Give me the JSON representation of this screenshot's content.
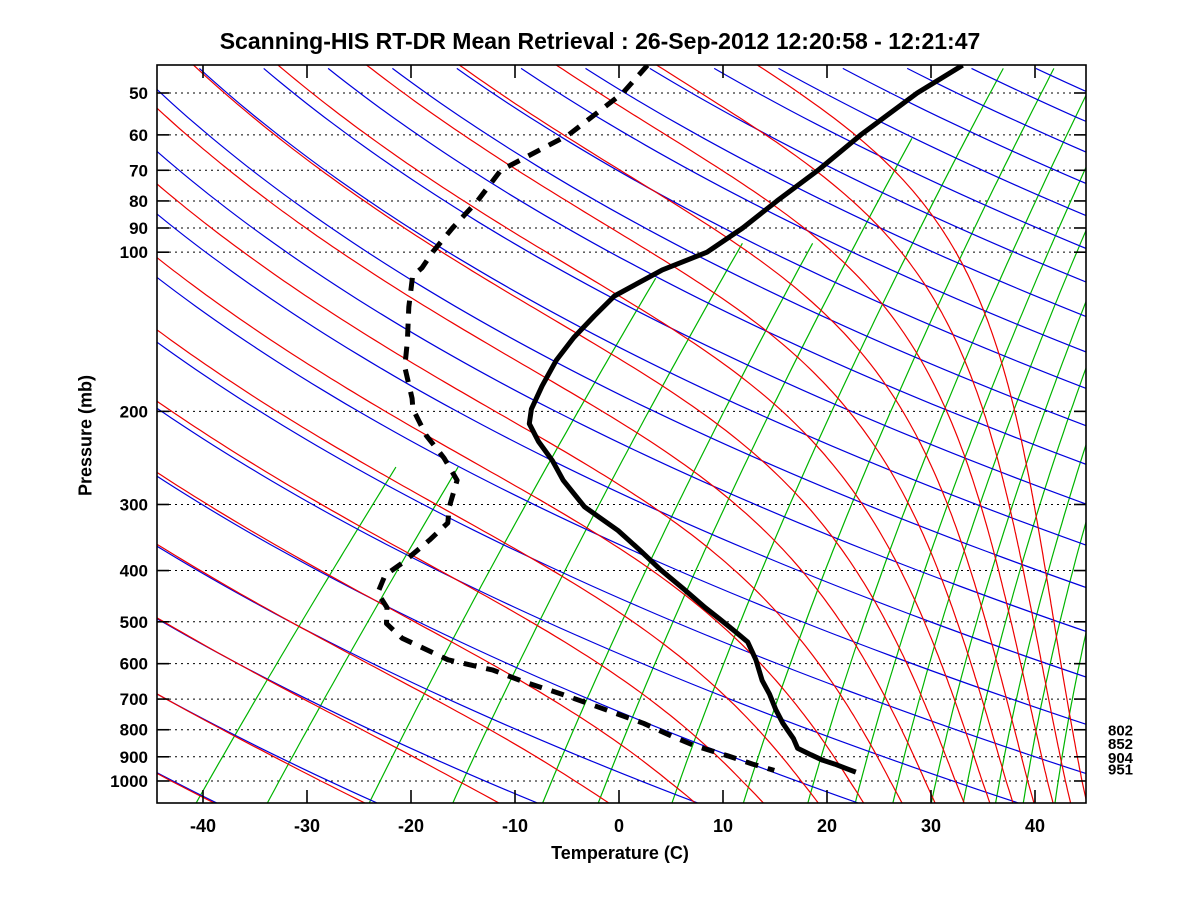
{
  "title": "Scanning-HIS RT-DR Mean Retrieval : 26-Sep-2012 12:20:58 - 12:21:47",
  "axes": {
    "x": {
      "label": "Temperature (C)",
      "tick_values": [
        -40,
        -30,
        -20,
        -10,
        0,
        10,
        20,
        30,
        40
      ]
    },
    "y": {
      "label": "Pressure (mb)",
      "tick_values": [
        50,
        60,
        70,
        80,
        90,
        100,
        200,
        300,
        400,
        500,
        600,
        700,
        800,
        900,
        1000
      ]
    }
  },
  "right_pressure_labels": [
    802,
    852,
    904,
    951
  ],
  "chart_data": {
    "type": "line",
    "chart_kind": "skew-t-log-p",
    "title": "Scanning-HIS RT-DR Mean Retrieval : 26-Sep-2012 12:20:58 - 12:21:47",
    "xlabel": "Temperature (C)",
    "ylabel": "Pressure (mb)",
    "xlim": [
      -44.4,
      44.9
    ],
    "ylim_pressure_mb": [
      1100.7,
      44.3
    ],
    "skew_degrees": 45,
    "grid": "dotted horizontal lines at labeled pressure levels",
    "legend_position": "none",
    "series": [
      {
        "name": "Temperature",
        "style": "solid",
        "color": "#000000",
        "points_p_mb_T_c": [
          [
            44.3,
            -37.9
          ],
          [
            50,
            -39.6
          ],
          [
            60,
            -41.0
          ],
          [
            70,
            -41.7
          ],
          [
            80,
            -42.7
          ],
          [
            90,
            -43.4
          ],
          [
            100,
            -44.5
          ],
          [
            108,
            -47.1
          ],
          [
            121,
            -49.2
          ],
          [
            132,
            -49.2
          ],
          [
            145,
            -49.1
          ],
          [
            160,
            -48.6
          ],
          [
            179,
            -47.5
          ],
          [
            198,
            -46.3
          ],
          [
            211,
            -45.1
          ],
          [
            228,
            -42.5
          ],
          [
            248,
            -39.3
          ],
          [
            270,
            -36.4
          ],
          [
            303,
            -31.8
          ],
          [
            336,
            -26.3
          ],
          [
            366,
            -22.3
          ],
          [
            398,
            -18.5
          ],
          [
            433,
            -14.4
          ],
          [
            470,
            -10.5
          ],
          [
            493,
            -8.1
          ],
          [
            523,
            -5.2
          ],
          [
            546,
            -3.1
          ],
          [
            590,
            -0.6
          ],
          [
            646,
            2.0
          ],
          [
            685,
            4.0
          ],
          [
            733,
            6.1
          ],
          [
            778,
            8.1
          ],
          [
            832,
            10.6
          ],
          [
            867,
            11.9
          ],
          [
            892,
            13.8
          ],
          [
            914,
            15.5
          ],
          [
            929,
            17.0
          ],
          [
            948,
            18.6
          ],
          [
            962,
            19.8
          ]
        ]
      },
      {
        "name": "Dew point",
        "style": "dashed",
        "color": "#000000",
        "points_p_mb_T_c": [
          [
            44.3,
            -68.2
          ],
          [
            50,
            -67.9
          ],
          [
            60,
            -69.1
          ],
          [
            70,
            -72.2
          ],
          [
            80,
            -71.5
          ],
          [
            90,
            -71.3
          ],
          [
            100,
            -70.9
          ],
          [
            107,
            -70.4
          ],
          [
            111,
            -70.5
          ],
          [
            127,
            -67.9
          ],
          [
            147,
            -64.8
          ],
          [
            165,
            -62.5
          ],
          [
            189,
            -58.8
          ],
          [
            198,
            -57.7
          ],
          [
            222,
            -53.9
          ],
          [
            245,
            -50.0
          ],
          [
            270,
            -46.6
          ],
          [
            303,
            -44.8
          ],
          [
            325,
            -43.4
          ],
          [
            350,
            -43.5
          ],
          [
            386,
            -43.9
          ],
          [
            408,
            -44.4
          ],
          [
            441,
            -43.4
          ],
          [
            470,
            -41.1
          ],
          [
            504,
            -39.6
          ],
          [
            537,
            -36.7
          ],
          [
            590,
            -30.2
          ],
          [
            617,
            -24.9
          ],
          [
            650,
            -20.7
          ],
          [
            685,
            -16.0
          ],
          [
            724,
            -11.3
          ],
          [
            778,
            -5.3
          ],
          [
            822,
            -1.4
          ],
          [
            857,
            1.7
          ],
          [
            896,
            5.9
          ],
          [
            929,
            9.1
          ],
          [
            955,
            11.8
          ]
        ]
      }
    ],
    "background_isopleths": {
      "mixing_ratio_lines": {
        "color": "#00b400",
        "values_g_kg": [
          0.1,
          0.2,
          0.5,
          1,
          2,
          3,
          5,
          8,
          12,
          16,
          20,
          25,
          30,
          36,
          42,
          50,
          60
        ],
        "p_top_mb": [
          250,
          250,
          110,
          95,
          95,
          60,
          44,
          44,
          44,
          44,
          44,
          44,
          44,
          44,
          44,
          44,
          44
        ]
      },
      "dry_adiabats": {
        "color": "#0000dd",
        "theta_c_start": -45,
        "theta_c_end": 330,
        "theta_c_step": 15
      },
      "moist_adiabats": {
        "color": "#ee0000",
        "theta_e_c_start": -60,
        "theta_e_c_end": 195,
        "theta_e_c_step": 15
      },
      "pressure_gridlines": {
        "color": "#000000",
        "style": "dotted"
      }
    }
  }
}
